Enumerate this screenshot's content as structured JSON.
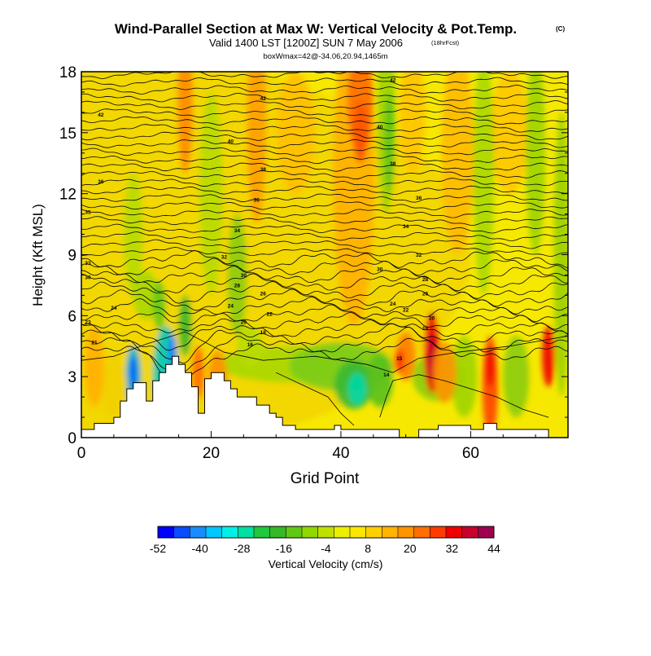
{
  "chart_data": {
    "type": "heatmap",
    "title": "Wind-Parallel Section at Max W: Vertical Velocity & Pot.Temp.",
    "title_mark": "(C)",
    "subtitle": "Valid 1400 LST [1200Z] SUN 7 May 2006",
    "subtitle_note": "(18hrFcst)",
    "info_line": "boxWmax=42@-34.06,20.94,1465m",
    "xlabel": "Grid Point",
    "ylabel": "Height (Kft MSL)",
    "xlim": [
      0,
      75
    ],
    "ylim": [
      0,
      18
    ],
    "xticks": [
      "0",
      "20",
      "40",
      "60"
    ],
    "xtick_values": [
      0,
      20,
      40,
      60
    ],
    "yticks": [
      "0",
      "3",
      "6",
      "9",
      "12",
      "15",
      "18"
    ],
    "ytick_values": [
      0,
      3,
      6,
      9,
      12,
      15,
      18
    ],
    "colorbar": {
      "label": "Vertical Velocity (cm/s)",
      "tick_labels": [
        "-52",
        "-40",
        "-28",
        "-16",
        "-4",
        "8",
        "20",
        "32",
        "44"
      ],
      "colors": [
        "#0000ff",
        "#0a4cff",
        "#1b8cff",
        "#00c8ff",
        "#00f0e8",
        "#00e0a0",
        "#20c840",
        "#36b828",
        "#62c818",
        "#90d800",
        "#c0e000",
        "#eaf000",
        "#ffe600",
        "#ffd000",
        "#ffb400",
        "#ff9400",
        "#ff6e00",
        "#ff3c00",
        "#f00000",
        "#c8002c",
        "#a00050"
      ]
    },
    "contour_labels": [
      {
        "text": "42",
        "x": 3,
        "y": 15.9
      },
      {
        "text": "42",
        "x": 28,
        "y": 16.7
      },
      {
        "text": "42",
        "x": 48,
        "y": 17.6
      },
      {
        "text": "40",
        "x": 23,
        "y": 14.6
      },
      {
        "text": "40",
        "x": 46,
        "y": 15.3
      },
      {
        "text": "38",
        "x": 28,
        "y": 13.2
      },
      {
        "text": "38",
        "x": 48,
        "y": 13.5
      },
      {
        "text": "36",
        "x": 3,
        "y": 12.6
      },
      {
        "text": "36",
        "x": 27,
        "y": 11.7
      },
      {
        "text": "36",
        "x": 52,
        "y": 11.8
      },
      {
        "text": "35",
        "x": 1,
        "y": 11.1
      },
      {
        "text": "34",
        "x": 24,
        "y": 10.2
      },
      {
        "text": "34",
        "x": 50,
        "y": 10.4
      },
      {
        "text": "33",
        "x": 1,
        "y": 8.6
      },
      {
        "text": "32",
        "x": 22,
        "y": 8.9
      },
      {
        "text": "32",
        "x": 52,
        "y": 9.0
      },
      {
        "text": "30",
        "x": 1,
        "y": 7.9
      },
      {
        "text": "30",
        "x": 25,
        "y": 8.0
      },
      {
        "text": "30",
        "x": 46,
        "y": 8.3
      },
      {
        "text": "28",
        "x": 24,
        "y": 7.5
      },
      {
        "text": "28",
        "x": 53,
        "y": 7.8
      },
      {
        "text": "26",
        "x": 28,
        "y": 7.1
      },
      {
        "text": "26",
        "x": 53,
        "y": 7.1
      },
      {
        "text": "24",
        "x": 5,
        "y": 6.4
      },
      {
        "text": "24",
        "x": 23,
        "y": 6.5
      },
      {
        "text": "24",
        "x": 48,
        "y": 6.6
      },
      {
        "text": "23",
        "x": 1,
        "y": 5.7
      },
      {
        "text": "22",
        "x": 29,
        "y": 6.1
      },
      {
        "text": "22",
        "x": 50,
        "y": 6.3
      },
      {
        "text": "20",
        "x": 25,
        "y": 5.7
      },
      {
        "text": "20",
        "x": 54,
        "y": 5.9
      },
      {
        "text": "21",
        "x": 2,
        "y": 4.7
      },
      {
        "text": "18",
        "x": 28,
        "y": 5.2
      },
      {
        "text": "18",
        "x": 53,
        "y": 5.4
      },
      {
        "text": "16",
        "x": 26,
        "y": 4.6
      },
      {
        "text": "15",
        "x": 49,
        "y": 3.9
      },
      {
        "text": "14",
        "x": 47,
        "y": 3.1
      }
    ]
  }
}
